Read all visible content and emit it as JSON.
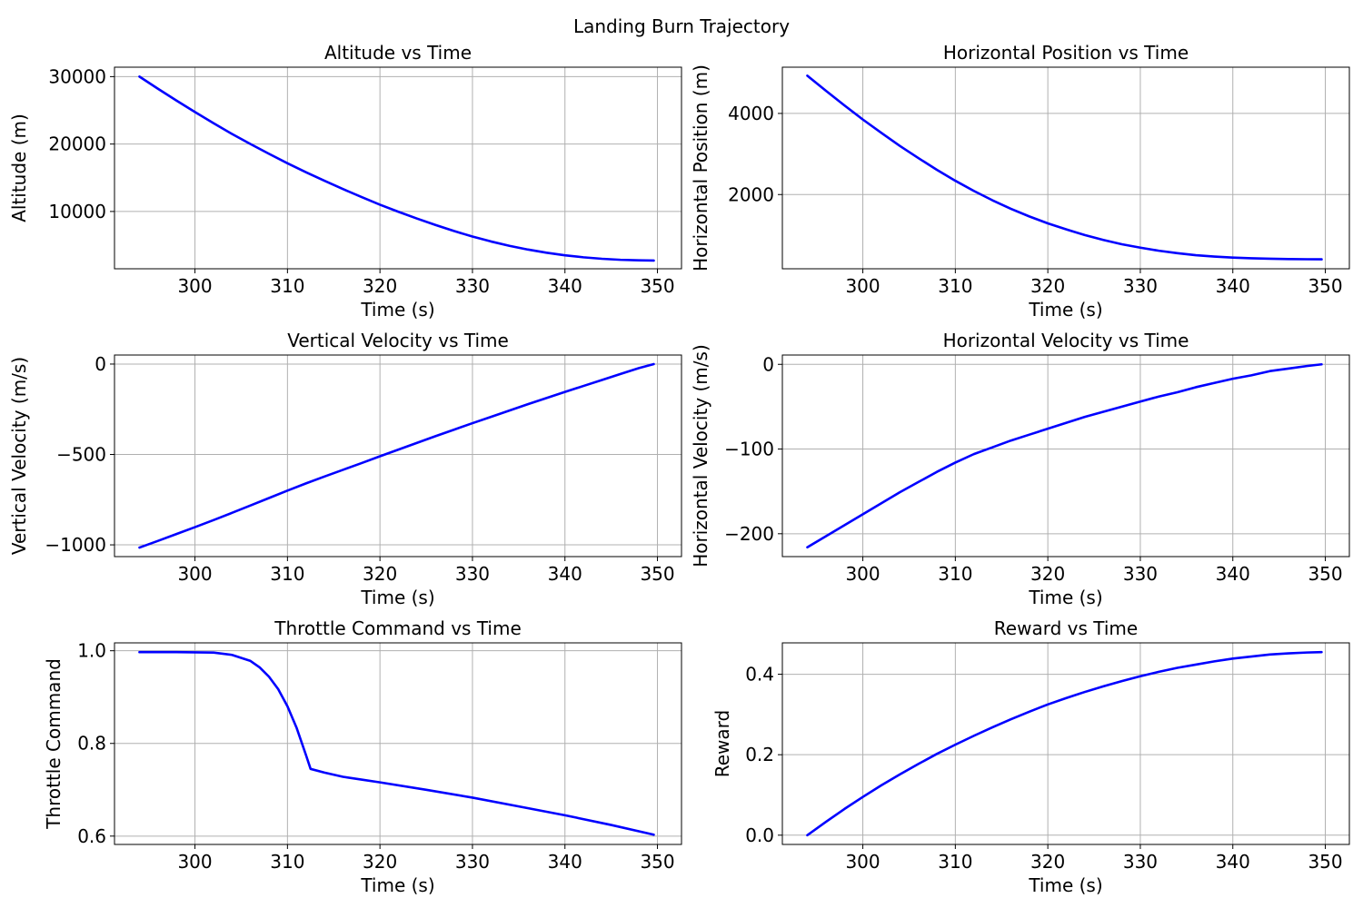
{
  "figure_title": "Landing Burn Trajectory",
  "colors": {
    "series": "#0000ff",
    "grid": "#b0b0b0",
    "axes": "#000000",
    "background": "#ffffff"
  },
  "chart_data": [
    {
      "type": "line",
      "title": "Altitude vs Time",
      "xlabel": "Time (s)",
      "ylabel": "Altitude (m)",
      "xlim": [
        291.3,
        352.6
      ],
      "ylim": [
        1500,
        31400
      ],
      "xticks": [
        300,
        310,
        320,
        330,
        340,
        350
      ],
      "xtick_labels": [
        "300",
        "310",
        "320",
        "330",
        "340",
        "350"
      ],
      "yticks": [
        10000,
        20000,
        30000
      ],
      "ytick_labels": [
        "10000",
        "20000",
        "30000"
      ],
      "grid": true,
      "series": [
        {
          "x": [
            294,
            296,
            298,
            300,
            302,
            304,
            306,
            308,
            310,
            312,
            314,
            316,
            318,
            320,
            322,
            324,
            326,
            328,
            330,
            332,
            334,
            336,
            338,
            340,
            342,
            344,
            346,
            348,
            349.6
          ],
          "y": [
            30000,
            28200,
            26450,
            24750,
            23100,
            21500,
            20000,
            18550,
            17150,
            15820,
            14550,
            13320,
            12150,
            11000,
            9950,
            8950,
            8000,
            7100,
            6280,
            5550,
            4900,
            4350,
            3880,
            3500,
            3200,
            2980,
            2830,
            2750,
            2720
          ]
        }
      ]
    },
    {
      "type": "line",
      "title": "Horizontal Position vs Time",
      "xlabel": "Time (s)",
      "ylabel": "Horizontal Position (m)",
      "xlim": [
        291.3,
        352.6
      ],
      "ylim": [
        170,
        5140
      ],
      "xticks": [
        300,
        310,
        320,
        330,
        340,
        350
      ],
      "xtick_labels": [
        "300",
        "310",
        "320",
        "330",
        "340",
        "350"
      ],
      "yticks": [
        2000,
        4000
      ],
      "ytick_labels": [
        "2000",
        "4000"
      ],
      "grid": true,
      "series": [
        {
          "x": [
            294,
            296,
            298,
            300,
            302,
            304,
            306,
            308,
            310,
            312,
            314,
            316,
            318,
            320,
            322,
            324,
            326,
            328,
            330,
            332,
            334,
            336,
            338,
            340,
            342,
            344,
            346,
            348,
            349.6
          ],
          "y": [
            4930,
            4560,
            4200,
            3850,
            3520,
            3200,
            2900,
            2610,
            2340,
            2090,
            1860,
            1650,
            1460,
            1290,
            1140,
            1000,
            880,
            775,
            690,
            615,
            555,
            505,
            470,
            445,
            430,
            418,
            410,
            405,
            403
          ]
        }
      ]
    },
    {
      "type": "line",
      "title": "Vertical Velocity vs Time",
      "xlabel": "Time (s)",
      "ylabel": "Vertical Velocity (m/s)",
      "xlim": [
        291.3,
        352.6
      ],
      "ylim": [
        -1065,
        50
      ],
      "xticks": [
        300,
        310,
        320,
        330,
        340,
        350
      ],
      "xtick_labels": [
        "300",
        "310",
        "320",
        "330",
        "340",
        "350"
      ],
      "yticks": [
        -1000,
        -500,
        0
      ],
      "ytick_labels": [
        "−1000",
        "−500",
        "0"
      ],
      "grid": true,
      "series": [
        {
          "x": [
            294,
            296,
            298,
            300,
            302,
            304,
            306,
            308,
            310,
            312,
            314,
            316,
            318,
            320,
            322,
            324,
            326,
            328,
            330,
            332,
            334,
            336,
            338,
            340,
            342,
            344,
            346,
            348,
            349.6
          ],
          "y": [
            -1015,
            -978,
            -940,
            -902,
            -863,
            -823,
            -782,
            -741,
            -700,
            -660,
            -622,
            -585,
            -548,
            -510,
            -473,
            -436,
            -399,
            -363,
            -327,
            -292,
            -257,
            -222,
            -188,
            -154,
            -121,
            -88,
            -55,
            -22,
            0
          ]
        }
      ]
    },
    {
      "type": "line",
      "title": "Horizontal Velocity vs Time",
      "xlabel": "Time (s)",
      "ylabel": "Horizontal Velocity (m/s)",
      "xlim": [
        291.3,
        352.6
      ],
      "ylim": [
        -227,
        11
      ],
      "xticks": [
        300,
        310,
        320,
        330,
        340,
        350
      ],
      "xtick_labels": [
        "300",
        "310",
        "320",
        "330",
        "340",
        "350"
      ],
      "yticks": [
        -200,
        -100,
        0
      ],
      "ytick_labels": [
        "−200",
        "−100",
        "0"
      ],
      "grid": true,
      "series": [
        {
          "x": [
            294,
            296,
            298,
            300,
            302,
            304,
            306,
            308,
            310,
            312,
            314,
            316,
            318,
            320,
            322,
            324,
            326,
            328,
            330,
            332,
            334,
            336,
            338,
            340,
            342,
            344,
            346,
            348,
            349.6
          ],
          "y": [
            -216,
            -203,
            -190,
            -177,
            -164,
            -151,
            -139,
            -127,
            -116,
            -106,
            -98,
            -90,
            -83,
            -76,
            -69,
            -62,
            -56,
            -50,
            -44,
            -38,
            -33,
            -27,
            -22,
            -17,
            -13,
            -8,
            -5,
            -2,
            0
          ]
        }
      ]
    },
    {
      "type": "line",
      "title": "Throttle Command vs Time",
      "xlabel": "Time (s)",
      "ylabel": "Throttle Command",
      "xlim": [
        291.3,
        352.6
      ],
      "ylim": [
        0.582,
        1.017
      ],
      "xticks": [
        300,
        310,
        320,
        330,
        340,
        350
      ],
      "xtick_labels": [
        "300",
        "310",
        "320",
        "330",
        "340",
        "350"
      ],
      "yticks": [
        0.6,
        0.8,
        1.0
      ],
      "ytick_labels": [
        "0.6",
        "0.8",
        "1.0"
      ],
      "grid": true,
      "series": [
        {
          "x": [
            294,
            298,
            302,
            304,
            306,
            307,
            308,
            309,
            310,
            311,
            312,
            312.5,
            314,
            316,
            318,
            320,
            325,
            330,
            335,
            340,
            345,
            349.6
          ],
          "y": [
            0.997,
            0.997,
            0.996,
            0.991,
            0.978,
            0.964,
            0.944,
            0.917,
            0.88,
            0.833,
            0.775,
            0.745,
            0.737,
            0.728,
            0.722,
            0.716,
            0.7,
            0.683,
            0.664,
            0.645,
            0.624,
            0.603
          ]
        }
      ]
    },
    {
      "type": "line",
      "title": "Reward vs Time",
      "xlabel": "Time (s)",
      "ylabel": "Reward",
      "xlim": [
        291.3,
        352.6
      ],
      "ylim": [
        -0.023,
        0.478
      ],
      "xticks": [
        300,
        310,
        320,
        330,
        340,
        350
      ],
      "xtick_labels": [
        "300",
        "310",
        "320",
        "330",
        "340",
        "350"
      ],
      "yticks": [
        0.0,
        0.2,
        0.4
      ],
      "ytick_labels": [
        "0.0",
        "0.2",
        "0.4"
      ],
      "grid": true,
      "series": [
        {
          "x": [
            294,
            296,
            298,
            300,
            302,
            304,
            306,
            308,
            310,
            312,
            314,
            316,
            318,
            320,
            322,
            324,
            326,
            328,
            330,
            332,
            334,
            336,
            338,
            340,
            342,
            344,
            346,
            348,
            349.6
          ],
          "y": [
            0.0,
            0.033,
            0.065,
            0.095,
            0.124,
            0.151,
            0.177,
            0.202,
            0.225,
            0.247,
            0.268,
            0.288,
            0.307,
            0.325,
            0.341,
            0.356,
            0.37,
            0.383,
            0.395,
            0.406,
            0.416,
            0.424,
            0.432,
            0.439,
            0.444,
            0.449,
            0.452,
            0.454,
            0.455
          ]
        }
      ]
    }
  ]
}
